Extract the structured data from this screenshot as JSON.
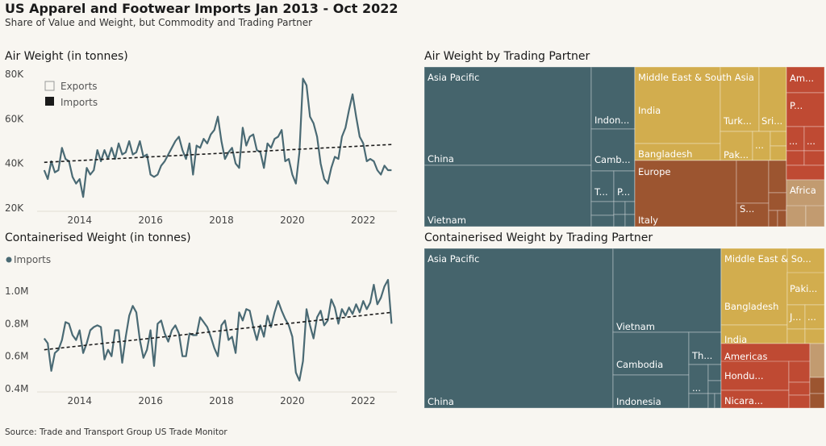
{
  "title": "US Apparel and Footwear Imports Jan 2013 - Oct 2022",
  "subtitle": "Share of Value and Weight, but Commodity and Trading Partner",
  "source": "Source: Trade and Transport Group US Trade Monitor",
  "colors": {
    "background": "#f8f6f1",
    "line": "#4a6a74",
    "asia_pacific": "#45646c",
    "middle_east_south_asia": "#d2ad4e",
    "europe": "#9c5530",
    "americas": "#bf4a33",
    "africa": "#c29b70"
  },
  "chart_data": [
    {
      "type": "line",
      "title": "Air Weight (in tonnes)",
      "legend": [
        "Exports",
        "Imports"
      ],
      "legend_position": "top-left",
      "ylim": [
        20000,
        80000
      ],
      "yticks": [
        "20K",
        "40K",
        "60K",
        "80K"
      ],
      "xticks": [
        "2014",
        "2016",
        "2018",
        "2020",
        "2022"
      ],
      "grid": false,
      "series": [
        {
          "name": "Imports",
          "x": [
            2013.0,
            2013.1,
            2013.2,
            2013.3,
            2013.4,
            2013.5,
            2013.6,
            2013.7,
            2013.8,
            2013.9,
            2014.0,
            2014.1,
            2014.2,
            2014.3,
            2014.4,
            2014.5,
            2014.6,
            2014.7,
            2014.8,
            2014.9,
            2015.0,
            2015.1,
            2015.2,
            2015.3,
            2015.4,
            2015.5,
            2015.6,
            2015.7,
            2015.8,
            2015.9,
            2016.0,
            2016.1,
            2016.2,
            2016.3,
            2016.4,
            2016.5,
            2016.6,
            2016.7,
            2016.8,
            2016.9,
            2017.0,
            2017.1,
            2017.2,
            2017.3,
            2017.4,
            2017.5,
            2017.6,
            2017.7,
            2017.8,
            2017.9,
            2018.0,
            2018.1,
            2018.2,
            2018.3,
            2018.4,
            2018.5,
            2018.6,
            2018.7,
            2018.8,
            2018.9,
            2019.0,
            2019.1,
            2019.2,
            2019.3,
            2019.4,
            2019.5,
            2019.6,
            2019.7,
            2019.8,
            2019.9,
            2020.0,
            2020.1,
            2020.2,
            2020.3,
            2020.4,
            2020.5,
            2020.6,
            2020.7,
            2020.8,
            2020.9,
            2021.0,
            2021.1,
            2021.2,
            2021.3,
            2021.4,
            2021.5,
            2021.6,
            2021.7,
            2021.8,
            2021.9,
            2022.0,
            2022.1,
            2022.2,
            2022.3,
            2022.4,
            2022.5,
            2022.6,
            2022.7,
            2022.8
          ],
          "values": [
            37000,
            33000,
            41000,
            36000,
            37000,
            47000,
            42000,
            41000,
            34000,
            31000,
            33000,
            25000,
            38000,
            35000,
            37000,
            46000,
            41000,
            46000,
            42000,
            47000,
            42000,
            49000,
            44000,
            45000,
            50000,
            44000,
            45000,
            50000,
            43000,
            44000,
            35000,
            34000,
            35000,
            39000,
            41000,
            44000,
            47000,
            50000,
            52000,
            46000,
            42000,
            49000,
            35000,
            48000,
            47000,
            51000,
            49000,
            53000,
            55000,
            61000,
            50000,
            42000,
            45000,
            47000,
            40000,
            38000,
            56000,
            48000,
            52000,
            53000,
            46000,
            45000,
            38000,
            49000,
            47000,
            51000,
            52000,
            55000,
            41000,
            42000,
            35000,
            31000,
            45000,
            78000,
            75000,
            61000,
            58000,
            52000,
            40000,
            33000,
            31000,
            38000,
            43000,
            42000,
            52000,
            56000,
            64000,
            71000,
            61000,
            52000,
            49000,
            41000,
            42000,
            41000,
            37000,
            35000,
            39000,
            37000,
            37000
          ],
          "trend": [
            40500,
            48500
          ]
        }
      ]
    },
    {
      "type": "treemap",
      "title": "Air Weight by Trading Partner",
      "labels": [
        "Asia Pacific",
        "China",
        "Vietnam",
        "Indon...",
        "Camb...",
        "T...",
        "P...",
        "Middle East & South Asia",
        "India",
        "Bangladesh",
        "Turk...",
        "Sri...",
        "Pak...",
        "...",
        "Europe",
        "Italy",
        "S...",
        "Am...",
        "P...",
        "Africa"
      ]
    },
    {
      "type": "line",
      "title": "Containerised Weight (in tonnes)",
      "legend": [
        "Imports"
      ],
      "legend_position": "top-left",
      "ylim": [
        400000,
        1100000
      ],
      "yticks": [
        "0.4M",
        "0.6M",
        "0.8M",
        "1.0M"
      ],
      "xticks": [
        "2014",
        "2016",
        "2018",
        "2020",
        "2022"
      ],
      "grid": false,
      "series": [
        {
          "name": "Imports",
          "x": [
            2013.0,
            2013.1,
            2013.2,
            2013.3,
            2013.4,
            2013.5,
            2013.6,
            2013.7,
            2013.8,
            2013.9,
            2014.0,
            2014.1,
            2014.2,
            2014.3,
            2014.4,
            2014.5,
            2014.6,
            2014.7,
            2014.8,
            2014.9,
            2015.0,
            2015.1,
            2015.2,
            2015.3,
            2015.4,
            2015.5,
            2015.6,
            2015.7,
            2015.8,
            2015.9,
            2016.0,
            2016.1,
            2016.2,
            2016.3,
            2016.4,
            2016.5,
            2016.6,
            2016.7,
            2016.8,
            2016.9,
            2017.0,
            2017.1,
            2017.2,
            2017.3,
            2017.4,
            2017.5,
            2017.6,
            2017.7,
            2017.8,
            2017.9,
            2018.0,
            2018.1,
            2018.2,
            2018.3,
            2018.4,
            2018.5,
            2018.6,
            2018.7,
            2018.8,
            2018.9,
            2019.0,
            2019.1,
            2019.2,
            2019.3,
            2019.4,
            2019.5,
            2019.6,
            2019.7,
            2019.8,
            2019.9,
            2020.0,
            2020.1,
            2020.2,
            2020.3,
            2020.4,
            2020.5,
            2020.6,
            2020.7,
            2020.8,
            2020.9,
            2021.0,
            2021.1,
            2021.2,
            2021.3,
            2021.4,
            2021.5,
            2021.6,
            2021.7,
            2021.8,
            2021.9,
            2022.0,
            2022.1,
            2022.2,
            2022.3,
            2022.4,
            2022.5,
            2022.6,
            2022.7,
            2022.8
          ],
          "values": [
            710000,
            680000,
            510000,
            620000,
            640000,
            700000,
            810000,
            800000,
            730000,
            700000,
            760000,
            620000,
            680000,
            760000,
            780000,
            790000,
            780000,
            580000,
            640000,
            600000,
            760000,
            760000,
            560000,
            720000,
            850000,
            910000,
            870000,
            700000,
            590000,
            640000,
            760000,
            540000,
            800000,
            820000,
            740000,
            690000,
            760000,
            790000,
            740000,
            600000,
            600000,
            740000,
            730000,
            730000,
            840000,
            810000,
            780000,
            720000,
            650000,
            600000,
            790000,
            820000,
            700000,
            720000,
            620000,
            870000,
            820000,
            890000,
            880000,
            780000,
            700000,
            790000,
            720000,
            850000,
            780000,
            870000,
            940000,
            880000,
            830000,
            790000,
            720000,
            500000,
            450000,
            570000,
            890000,
            790000,
            710000,
            840000,
            880000,
            790000,
            820000,
            950000,
            900000,
            800000,
            890000,
            850000,
            900000,
            860000,
            920000,
            870000,
            940000,
            890000,
            930000,
            1040000,
            920000,
            960000,
            1030000,
            1070000,
            800000
          ],
          "trend": [
            640000,
            870000
          ]
        }
      ]
    },
    {
      "type": "treemap",
      "title": "Containerised Weight by Trading Partner",
      "labels": [
        "Asia Pacific",
        "China",
        "Vietnam",
        "Cambodia",
        "Indonesia",
        "Th...",
        "...",
        "Middle East & So...",
        "Bangladesh",
        "India",
        "Paki...",
        "J...",
        "...",
        "Americas",
        "Hondu...",
        "Nicara..."
      ]
    }
  ]
}
